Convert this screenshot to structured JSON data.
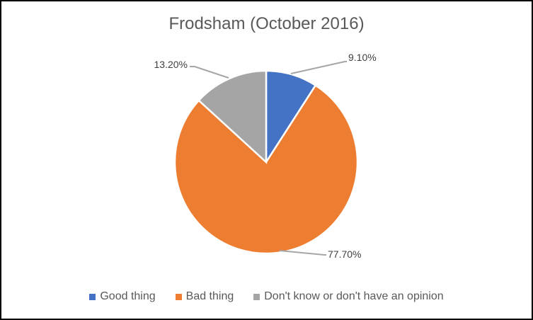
{
  "chart_data": {
    "type": "pie",
    "title": "Frodsham (October 2016)",
    "categories": [
      "Good thing",
      "Bad thing",
      "Don't know or don't have an opinion"
    ],
    "values": [
      9.1,
      77.7,
      13.2
    ],
    "data_labels": [
      "9.10%",
      "77.70%",
      "13.20%"
    ],
    "colors": [
      "#4472C4",
      "#ED7D31",
      "#A5A5A5"
    ],
    "legend_position": "bottom"
  }
}
